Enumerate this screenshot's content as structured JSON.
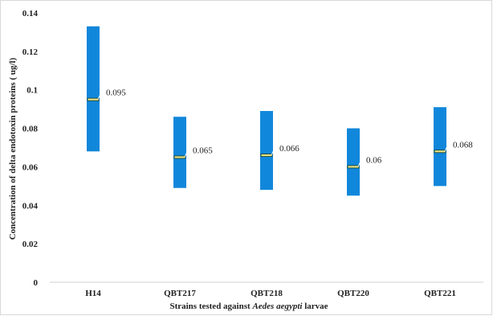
{
  "chart_data": {
    "type": "bar",
    "subtype": "floating-range",
    "categories": [
      "H14",
      "QBT217",
      "QBT218",
      "QBT220",
      "QBT221"
    ],
    "series": [
      {
        "values": [
          0.095,
          0.065,
          0.066,
          0.06,
          0.068
        ]
      }
    ],
    "low": [
      0.068,
      0.049,
      0.048,
      0.045,
      0.05
    ],
    "high": [
      0.133,
      0.086,
      0.089,
      0.08,
      0.091
    ],
    "data_labels": [
      "0.095",
      "0.065",
      "0.066",
      "0.06",
      "0.068"
    ],
    "xlabel_parts": [
      "Strains tested against ",
      "Aedes aegypti",
      " larvae"
    ],
    "ylabel": "Concentration of delta endotoxin proteins ( ug/l)",
    "ylim": [
      0,
      0.14
    ],
    "yticks": [
      0,
      0.02,
      0.04,
      0.06,
      0.08,
      0.1,
      0.12,
      0.14
    ],
    "ytick_labels": [
      "0",
      "0.02",
      "0.04",
      "0.06",
      "0.08",
      "0.1",
      "0.12",
      "0.14"
    ],
    "grid": false,
    "legend": "none",
    "bar_color": "#1187DB",
    "marker_color": "#E8E58A"
  }
}
